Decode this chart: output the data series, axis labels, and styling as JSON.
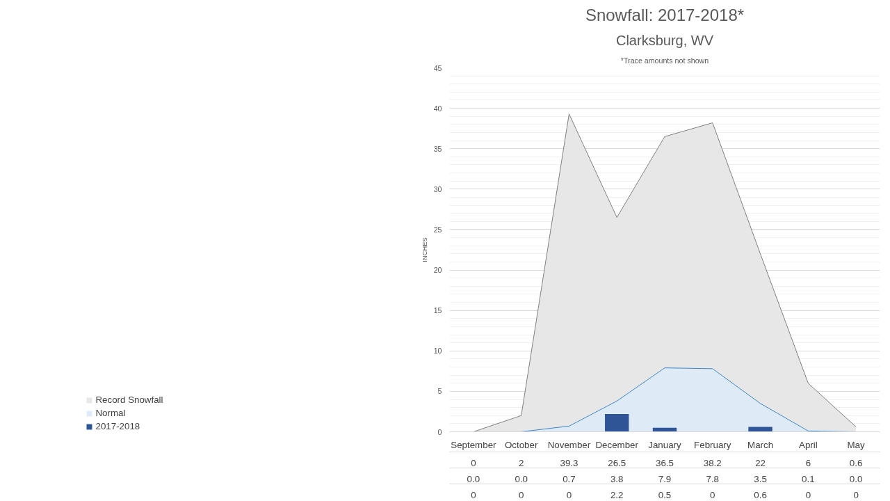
{
  "chart_data": {
    "type": "area",
    "title": "Snowfall: 2017-2018*",
    "subtitle": "Clarksburg, WV",
    "annotations": [
      "*Trace amounts not shown"
    ],
    "ylabel": "INCHES",
    "categories": [
      "September",
      "October",
      "November",
      "December",
      "January",
      "February",
      "March",
      "April",
      "May"
    ],
    "series": [
      {
        "name": "Record Snowfall",
        "color": "#e7e7e7",
        "values": [
          0,
          2,
          39.3,
          26.5,
          36.5,
          38.2,
          22,
          6,
          0.6
        ],
        "value_labels": [
          "0",
          "2",
          "39.3",
          "26.5",
          "36.5",
          "38.2",
          "22",
          "6",
          "0.6"
        ]
      },
      {
        "name": "Normal",
        "color": "#deebf7",
        "values": [
          0.0,
          0.0,
          0.7,
          3.8,
          7.9,
          7.8,
          3.5,
          0.1,
          0.0
        ],
        "value_labels": [
          "0.0",
          "0.0",
          "0.7",
          "3.8",
          "7.9",
          "7.8",
          "3.5",
          "0.1",
          "0.0"
        ]
      },
      {
        "name": "2017-2018",
        "type": "bar",
        "color": "#2f5597",
        "values": [
          0,
          0,
          0,
          2.2,
          0.5,
          0,
          0.6,
          0,
          0
        ],
        "value_labels": [
          "0",
          "0",
          "0",
          "2.2",
          "0.5",
          "0",
          "0.6",
          "0",
          "0"
        ]
      }
    ],
    "ylim": [
      0,
      45
    ],
    "yticks": [
      0,
      5,
      10,
      15,
      20,
      25,
      30,
      35,
      40,
      45
    ],
    "grid": "y",
    "legend": "bottom left",
    "data_labels": true
  }
}
